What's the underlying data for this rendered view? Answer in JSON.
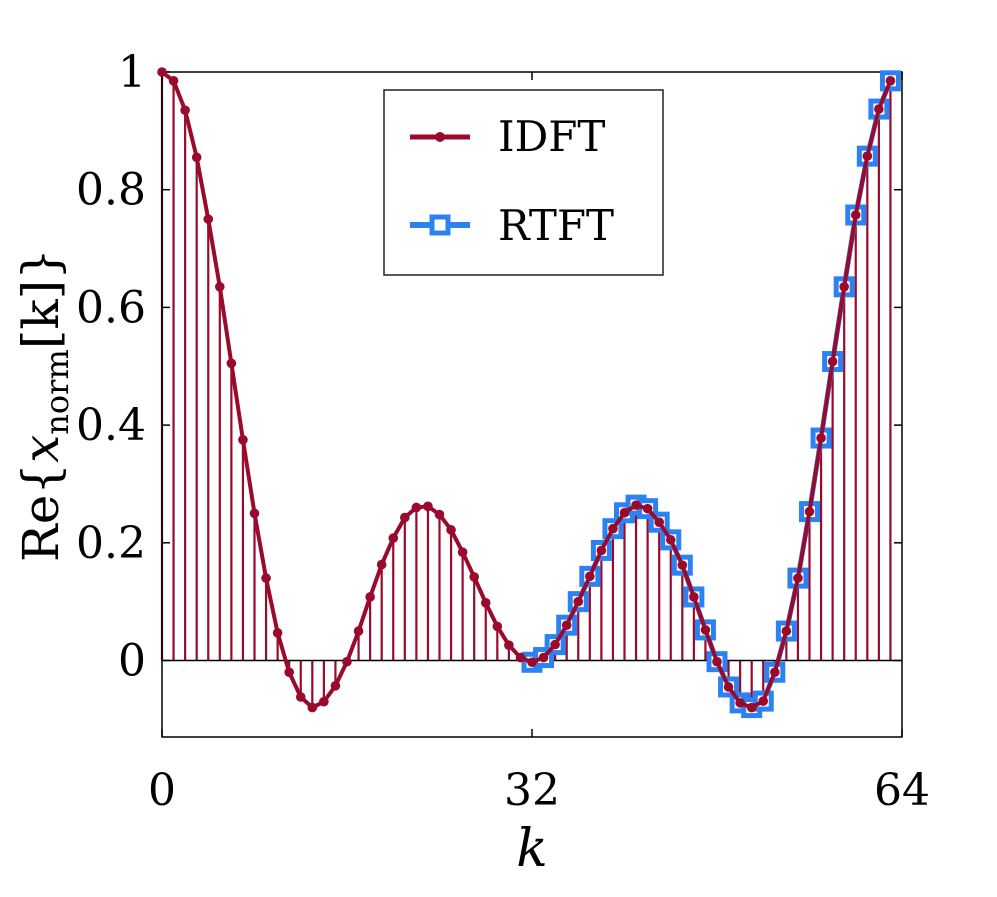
{
  "chart_data": {
    "type": "line",
    "title": "",
    "xlabel": "k",
    "ylabel": {
      "prefix": "Re{",
      "var": "x",
      "subscript": "norm",
      "suffix": "[k]}"
    },
    "xlim": [
      0,
      64
    ],
    "ylim": [
      -0.13,
      1.0
    ],
    "xticks": [
      0,
      32,
      64
    ],
    "xtick_labels": [
      "0",
      "32",
      "64"
    ],
    "yticks": [
      0,
      0.2,
      0.4,
      0.6,
      0.8,
      1
    ],
    "ytick_labels": [
      "0",
      "0.2",
      "0.4",
      "0.6",
      "0.8",
      "1"
    ],
    "colors": {
      "idft": "#9a0a2c",
      "rtft": "#2b82f0"
    },
    "legend": {
      "position": "top-center",
      "entries": [
        "IDFT",
        "RTFT"
      ]
    },
    "series": [
      {
        "name": "IDFT",
        "x": [
          0,
          1,
          2,
          3,
          4,
          5,
          6,
          7,
          8,
          9,
          10,
          11,
          12,
          13,
          14,
          15,
          16,
          17,
          18,
          19,
          20,
          21,
          22,
          23,
          24,
          25,
          26,
          27,
          28,
          29,
          30,
          31,
          32,
          33,
          34,
          35,
          36,
          37,
          38,
          39,
          40,
          41,
          42,
          43,
          44,
          45,
          46,
          47,
          48,
          49,
          50,
          51,
          52,
          53,
          54,
          55,
          56,
          57,
          58,
          59,
          60,
          61,
          62,
          63
        ],
        "values": [
          1.0,
          0.985,
          0.935,
          0.855,
          0.75,
          0.635,
          0.505,
          0.375,
          0.25,
          0.14,
          0.047,
          -0.02,
          -0.062,
          -0.08,
          -0.07,
          -0.043,
          -0.002,
          0.05,
          0.108,
          0.163,
          0.208,
          0.243,
          0.26,
          0.262,
          0.248,
          0.222,
          0.184,
          0.142,
          0.098,
          0.058,
          0.026,
          0.005,
          -0.003,
          0.005,
          0.027,
          0.06,
          0.1,
          0.143,
          0.187,
          0.224,
          0.251,
          0.264,
          0.258,
          0.235,
          0.205,
          0.162,
          0.108,
          0.052,
          -0.002,
          -0.045,
          -0.072,
          -0.08,
          -0.069,
          -0.02,
          0.05,
          0.14,
          0.253,
          0.378,
          0.508,
          0.635,
          0.757,
          0.857,
          0.937,
          0.985
        ]
      },
      {
        "name": "RTFT",
        "x": [
          32,
          33,
          34,
          35,
          36,
          37,
          38,
          39,
          40,
          41,
          42,
          43,
          44,
          45,
          46,
          47,
          48,
          49,
          50,
          51,
          52,
          53,
          54,
          55,
          56,
          57,
          58,
          59,
          60,
          61,
          62,
          63
        ],
        "values": [
          -0.003,
          0.005,
          0.027,
          0.06,
          0.1,
          0.143,
          0.187,
          0.224,
          0.251,
          0.264,
          0.258,
          0.235,
          0.205,
          0.162,
          0.108,
          0.052,
          -0.002,
          -0.045,
          -0.072,
          -0.08,
          -0.069,
          -0.02,
          0.05,
          0.14,
          0.253,
          0.378,
          0.508,
          0.635,
          0.757,
          0.857,
          0.937,
          0.985
        ]
      }
    ]
  }
}
